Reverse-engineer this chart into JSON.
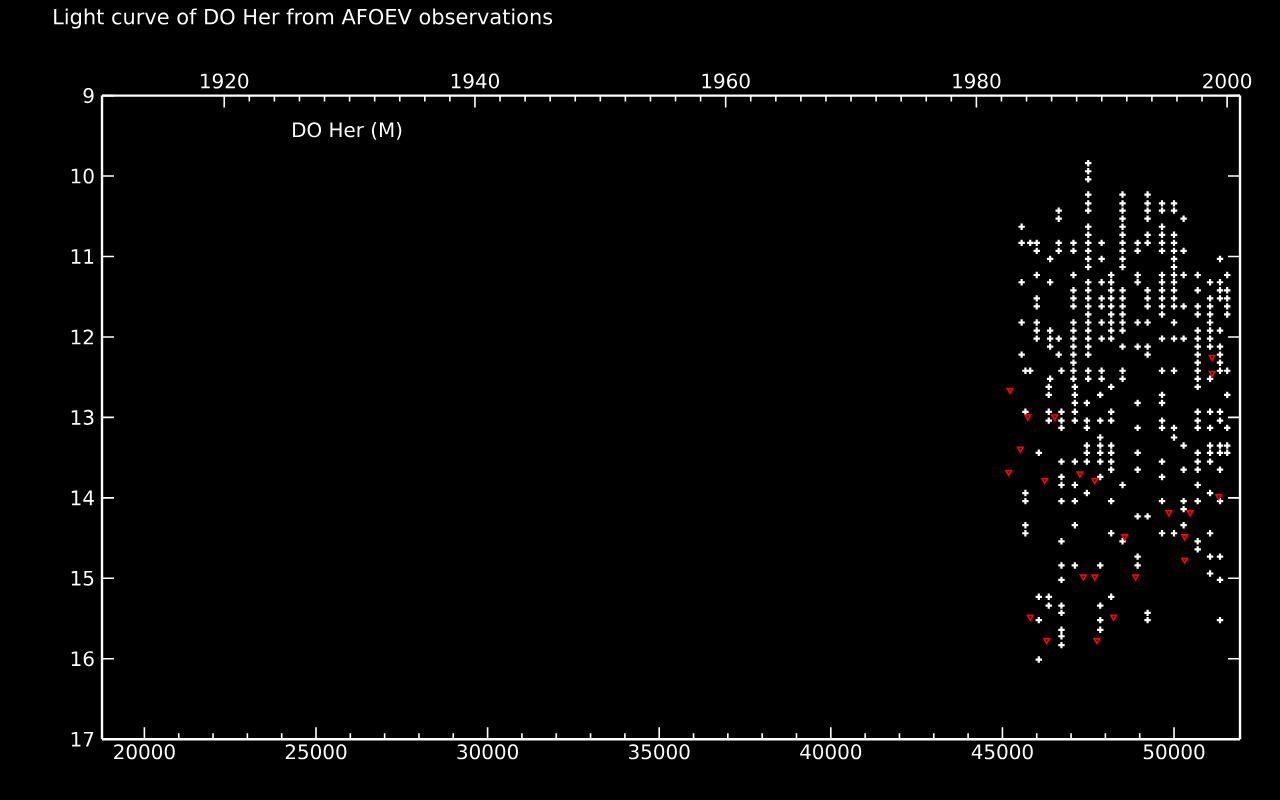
{
  "chart_data": {
    "type": "scatter",
    "title": "Light curve of DO Her from AFOEV observations",
    "annotations": [
      "DO Her (M)"
    ],
    "xlim": [
      18765,
      51923
    ],
    "xticks": [
      20000,
      25000,
      30000,
      35000,
      40000,
      45000,
      50000
    ],
    "x2lim": [
      1910.25,
      2001.03
    ],
    "x2ticks": [
      1920,
      1940,
      1960,
      1980,
      2000
    ],
    "ylim": [
      17,
      9
    ],
    "yticks": [
      9,
      10,
      11,
      12,
      13,
      14,
      15,
      16,
      17
    ],
    "series": [
      {
        "color": "#ffffff",
        "marker": "cross",
        "x": [
          45560,
          45560,
          45560,
          45560,
          45560,
          45810,
          46000,
          46000,
          46000,
          46000,
          46000,
          46000,
          46000,
          46000,
          46390,
          46390,
          46390,
          46390,
          46390,
          46640,
          46640,
          46640,
          46640,
          46640,
          46640,
          47070,
          47070,
          47070,
          47070,
          47070,
          47070,
          47070,
          47070,
          47070,
          47070,
          47070,
          47500,
          47500,
          47500,
          47500,
          47500,
          47500,
          47500,
          47500,
          47500,
          47500,
          47500,
          47500,
          47500,
          47500,
          47500,
          47500,
          47500,
          47500,
          47500,
          47500,
          47500,
          47500,
          47890,
          47890,
          47890,
          47890,
          47890,
          47890,
          47890,
          48170,
          48170,
          48170,
          48170,
          48170,
          48170,
          48170,
          48170,
          48170,
          48500,
          48500,
          48500,
          48500,
          48500,
          48500,
          48500,
          48500,
          48500,
          48500,
          48500,
          48500,
          48500,
          48500,
          48500,
          48500,
          48500,
          48940,
          48940,
          48940,
          48940,
          48940,
          48940,
          49230,
          49230,
          49230,
          49230,
          49230,
          49230,
          49230,
          49230,
          49230,
          49230,
          49230,
          49230,
          49650,
          49650,
          49650,
          49650,
          49650,
          49650,
          49650,
          49650,
          49650,
          49650,
          49650,
          49650,
          49650,
          50000,
          50000,
          50000,
          50000,
          50000,
          50000,
          50000,
          50000,
          50000,
          50000,
          50000,
          50000,
          50000,
          50000,
          50280,
          50280,
          50280,
          50280,
          50280,
          50690,
          50690,
          50690,
          50690,
          50690,
          50690,
          50690,
          50690,
          51050,
          51050,
          51050,
          51050,
          51050,
          51050,
          51050,
          51050,
          51340,
          51340,
          51340,
          51340,
          51340,
          51340,
          51340,
          51550,
          51550,
          51550,
          51550,
          51550,
          45670,
          45670,
          45670,
          45670,
          45670,
          46060,
          46060,
          46060,
          46060,
          46350,
          46350,
          46350,
          46350,
          46350,
          46350,
          46720,
          46720,
          46720,
          46720,
          46720,
          46720,
          46720,
          46720,
          46720,
          46720,
          46720,
          46720,
          46720,
          46720,
          46720,
          47110,
          47110,
          47110,
          47110,
          47110,
          47110,
          47110,
          47110,
          47110,
          47110,
          47460,
          47460,
          47460,
          47460,
          47460,
          47460,
          47460,
          47850,
          47850,
          47850,
          47850,
          47850,
          47850,
          47850,
          47850,
          47850,
          47850,
          47850,
          48170,
          48170,
          48170,
          48170,
          48170,
          48170,
          48170,
          48170,
          48170,
          48170,
          48500,
          48500,
          48940,
          48940,
          48940,
          48940,
          48940,
          48940,
          48940,
          49230,
          49230,
          49230,
          49650,
          49650,
          49650,
          49650,
          49650,
          49650,
          49650,
          49650,
          50000,
          50000,
          50000,
          50280,
          50280,
          50280,
          50280,
          50280,
          50690,
          50690,
          50690,
          50690,
          50690,
          50690,
          50690,
          50690,
          50690,
          50690,
          50690,
          51050,
          51050,
          51050,
          51050,
          51050,
          51050,
          51050,
          51050,
          51050,
          51340,
          51340,
          51340,
          51340,
          51340,
          51340,
          51340,
          51340,
          51340,
          51550,
          51550,
          51550,
          51550,
          47070,
          50690,
          51340,
          45670,
          45810,
          46720,
          47070,
          47500,
          47890,
          48500,
          49650,
          50000,
          50690,
          51340,
          51550,
          46390,
          47070,
          47500,
          47890,
          48500,
          50690,
          51050
        ],
        "values": [
          10.63,
          10.83,
          11.32,
          11.82,
          12.22,
          10.83,
          10.83,
          10.93,
          11.23,
          11.52,
          11.62,
          11.82,
          11.92,
          12.02,
          11.03,
          11.32,
          11.92,
          12.02,
          12.12,
          10.43,
          10.53,
          10.83,
          10.93,
          12.02,
          12.22,
          10.83,
          10.93,
          11.23,
          11.42,
          11.52,
          11.62,
          11.82,
          11.92,
          12.02,
          12.12,
          12.22,
          9.84,
          9.94,
          10.04,
          10.23,
          10.34,
          10.43,
          10.63,
          10.73,
          10.83,
          10.93,
          11.03,
          11.13,
          11.32,
          11.42,
          11.52,
          11.62,
          11.72,
          11.82,
          11.92,
          12.02,
          12.12,
          12.22,
          10.83,
          11.03,
          11.32,
          11.52,
          11.62,
          11.82,
          12.02,
          11.23,
          11.32,
          11.42,
          11.52,
          11.62,
          11.72,
          11.82,
          11.92,
          12.02,
          10.23,
          10.34,
          10.43,
          10.53,
          10.63,
          10.73,
          10.83,
          10.93,
          11.03,
          11.13,
          11.42,
          11.52,
          11.62,
          11.72,
          11.82,
          11.92,
          12.12,
          10.83,
          10.93,
          11.23,
          11.32,
          11.82,
          12.12,
          10.23,
          10.34,
          10.43,
          10.53,
          10.73,
          10.83,
          11.42,
          11.52,
          11.62,
          11.82,
          12.12,
          12.22,
          10.34,
          10.43,
          10.63,
          10.73,
          10.83,
          10.93,
          11.23,
          11.32,
          11.42,
          11.52,
          11.62,
          11.72,
          12.02,
          10.34,
          10.43,
          10.73,
          10.83,
          10.93,
          11.03,
          11.13,
          11.23,
          11.32,
          11.42,
          11.52,
          11.62,
          11.82,
          12.02,
          10.53,
          10.93,
          11.23,
          11.62,
          12.02,
          11.23,
          11.42,
          11.62,
          11.72,
          11.92,
          12.02,
          12.12,
          12.22,
          11.32,
          11.52,
          11.62,
          11.72,
          11.82,
          11.92,
          12.02,
          12.12,
          11.03,
          11.32,
          11.42,
          11.52,
          11.92,
          12.12,
          12.22,
          11.23,
          11.42,
          11.52,
          11.62,
          11.72,
          12.93,
          13.94,
          14.04,
          14.34,
          14.44,
          13.44,
          15.23,
          15.52,
          16.01,
          12.62,
          12.72,
          12.93,
          13.04,
          15.23,
          15.34,
          12.93,
          13.04,
          13.13,
          13.55,
          13.74,
          13.84,
          14.04,
          14.54,
          14.84,
          15.02,
          15.34,
          15.43,
          15.64,
          15.72,
          15.83,
          12.62,
          12.72,
          12.82,
          12.93,
          13.04,
          13.55,
          13.84,
          14.04,
          14.34,
          14.84,
          12.82,
          13.04,
          13.13,
          13.35,
          13.44,
          13.55,
          13.94,
          12.72,
          13.04,
          13.25,
          13.35,
          13.44,
          13.55,
          13.74,
          14.84,
          15.34,
          15.52,
          15.64,
          12.62,
          12.93,
          13.04,
          13.35,
          13.44,
          13.55,
          13.65,
          14.04,
          14.44,
          15.23,
          13.84,
          14.54,
          12.82,
          13.13,
          13.44,
          13.65,
          14.23,
          14.73,
          14.84,
          14.23,
          15.43,
          15.52,
          12.72,
          12.82,
          13.04,
          13.13,
          13.55,
          13.74,
          14.04,
          14.44,
          13.13,
          13.25,
          14.44,
          13.35,
          13.65,
          14.04,
          14.14,
          14.34,
          12.62,
          12.93,
          13.04,
          13.13,
          13.44,
          13.55,
          13.65,
          13.84,
          14.04,
          14.54,
          14.64,
          12.93,
          13.13,
          13.35,
          13.44,
          13.55,
          13.94,
          14.44,
          14.73,
          14.94,
          12.93,
          13.04,
          13.35,
          13.44,
          13.65,
          14.04,
          14.73,
          15.02,
          15.52,
          12.72,
          13.13,
          13.35,
          13.44,
          12.32,
          12.32,
          12.32,
          12.42,
          12.42,
          12.42,
          12.42,
          12.42,
          12.42,
          12.42,
          12.42,
          12.42,
          12.42,
          12.42,
          12.42,
          12.52,
          12.52,
          12.52,
          12.52,
          12.52,
          12.52,
          12.52
        ]
      },
      {
        "color": "#ff0000",
        "marker": "triangle",
        "x": [
          45220,
          51110,
          51110,
          45740,
          46520,
          45520,
          45180,
          46230,
          47260,
          47690,
          51300,
          49850,
          50470,
          48560,
          50310,
          50310,
          47360,
          47690,
          48880,
          45810,
          48240,
          46290,
          47750
        ],
        "values": [
          12.66,
          12.25,
          12.45,
          12.99,
          12.99,
          13.39,
          13.68,
          13.78,
          13.7,
          13.78,
          13.98,
          14.18,
          14.18,
          14.48,
          14.48,
          14.77,
          14.98,
          14.98,
          14.98,
          15.48,
          15.48,
          15.77,
          15.77
        ]
      }
    ]
  }
}
